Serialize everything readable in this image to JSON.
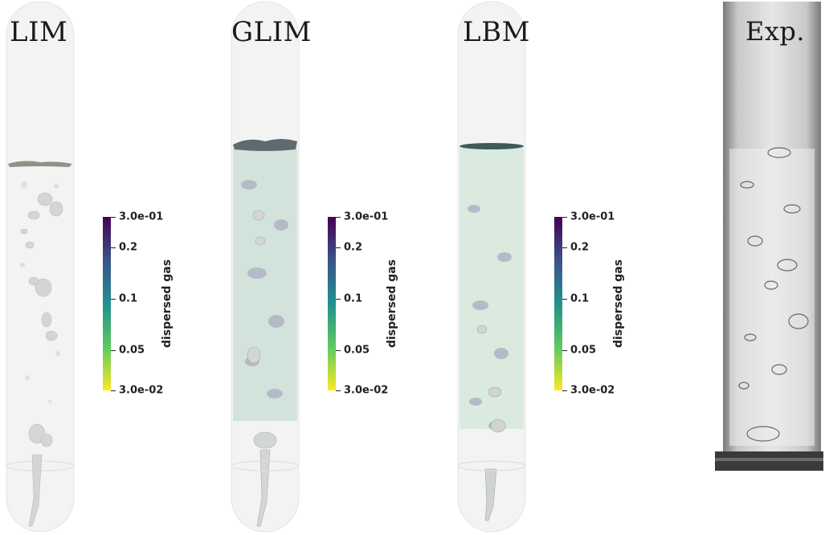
{
  "panels": [
    {
      "title": "LIM"
    },
    {
      "title": "GLIM"
    },
    {
      "title": "LBM"
    },
    {
      "title": "Exp."
    }
  ],
  "colorbar": {
    "title": "dispersed gas",
    "labels": [
      "3.0e-01",
      "0.2",
      "0.1",
      "0.05",
      "3.0e-02"
    ],
    "colormap": "viridis (reversed, purple top)",
    "colors": [
      "#440154",
      "#3b528b",
      "#21908d",
      "#5dc962",
      "#fde725"
    ]
  }
}
